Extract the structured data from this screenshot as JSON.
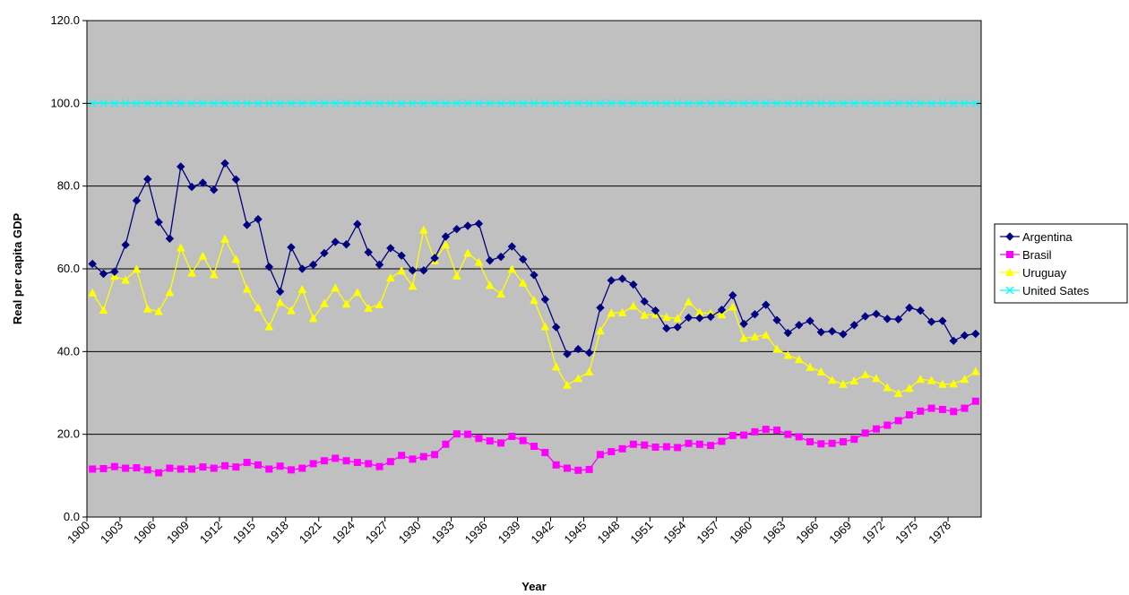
{
  "chart_data": {
    "type": "line",
    "y_label": "Real per capita GDP",
    "x_label": "Year",
    "categories": [
      "1900",
      null,
      null,
      "1903",
      null,
      null,
      "1906",
      null,
      null,
      "1909",
      null,
      null,
      "1912",
      null,
      null,
      "1915",
      null,
      null,
      "1918",
      null,
      null,
      "1921",
      null,
      null,
      "1924",
      null,
      null,
      "1927",
      null,
      null,
      "1930",
      null,
      null,
      "1933",
      null,
      null,
      "1936",
      null,
      null,
      "1939",
      null,
      null,
      "1942",
      null,
      null,
      "1945",
      null,
      null,
      "1948",
      null,
      null,
      "1951",
      null,
      null,
      "1954",
      null,
      null,
      "1957",
      null,
      null,
      "1960",
      null,
      null,
      "1963",
      null,
      null,
      "1966",
      null,
      null,
      "1969",
      null,
      null,
      "1972",
      null,
      null,
      "1975",
      null,
      null,
      "1978",
      null,
      null
    ],
    "series": [
      {
        "name": "Argentina",
        "color": "#000080",
        "marker": "diamond",
        "values": [
          61.2,
          58.8,
          59.3,
          65.8,
          76.5,
          81.7,
          71.3,
          67.3,
          84.7,
          79.8,
          80.8,
          79.1,
          85.5,
          81.6,
          70.6,
          72.0,
          60.5,
          54.5,
          65.2,
          60.0,
          61.0,
          63.8,
          66.5,
          65.9,
          70.8,
          64.0,
          61.0,
          65.0,
          63.2,
          59.6,
          59.6,
          62.6,
          67.8,
          69.6,
          70.4,
          70.9,
          62.0,
          62.9,
          65.4,
          62.3,
          58.5,
          52.6,
          45.9,
          39.4,
          40.6,
          39.7,
          50.6,
          57.2,
          57.6,
          56.2,
          52.1,
          49.9,
          45.6,
          45.9,
          48.2,
          48.1,
          48.4,
          50.1,
          53.6,
          46.7,
          49.0,
          51.3,
          47.6,
          44.5,
          46.4,
          47.4,
          44.7,
          44.9,
          44.2,
          46.4,
          48.5,
          49.1,
          47.9,
          47.8,
          50.6,
          49.9,
          47.2,
          47.4,
          42.6,
          43.9,
          44.3
        ]
      },
      {
        "name": "Brasil",
        "color": "#ff00ff",
        "marker": "square",
        "values": [
          11.6,
          11.7,
          12.2,
          11.8,
          11.9,
          11.4,
          10.7,
          11.8,
          11.6,
          11.6,
          12.1,
          11.8,
          12.4,
          12.1,
          13.2,
          12.6,
          11.6,
          12.3,
          11.4,
          11.8,
          12.9,
          13.6,
          14.2,
          13.6,
          13.2,
          12.9,
          12.2,
          13.4,
          14.9,
          14.0,
          14.6,
          15.1,
          17.6,
          20.1,
          20.0,
          19.0,
          18.4,
          17.9,
          19.5,
          18.5,
          17.1,
          15.6,
          12.6,
          11.8,
          11.3,
          11.5,
          15.1,
          15.8,
          16.5,
          17.6,
          17.4,
          16.9,
          17.0,
          16.8,
          17.8,
          17.6,
          17.3,
          18.3,
          19.7,
          19.8,
          20.6,
          21.2,
          21.0,
          20.0,
          19.4,
          18.2,
          17.7,
          17.8,
          18.2,
          18.8,
          20.3,
          21.3,
          22.2,
          23.3,
          24.7,
          25.6,
          26.3,
          26.0,
          25.5,
          26.3,
          28.0
        ]
      },
      {
        "name": "Uruguay",
        "color": "#ffff00",
        "marker": "triangle",
        "values": [
          54.2,
          50.0,
          58.2,
          57.3,
          59.9,
          50.3,
          49.7,
          54.3,
          65.1,
          59.0,
          63.1,
          58.6,
          67.2,
          62.3,
          55.1,
          50.6,
          46.0,
          51.9,
          49.9,
          55.0,
          48.0,
          51.6,
          55.4,
          51.5,
          54.3,
          50.5,
          51.3,
          57.8,
          59.5,
          55.8,
          69.4,
          62.0,
          65.8,
          58.3,
          63.8,
          61.6,
          56.0,
          53.9,
          59.9,
          56.6,
          52.4,
          46.0,
          36.3,
          31.9,
          33.5,
          35.1,
          45.0,
          49.3,
          49.4,
          51.0,
          48.8,
          49.0,
          48.3,
          48.0,
          52.0,
          49.5,
          49.2,
          48.9,
          50.8,
          43.2,
          43.6,
          44.0,
          40.6,
          39.1,
          38.1,
          36.2,
          35.1,
          33.1,
          32.1,
          32.9,
          34.4,
          33.5,
          31.3,
          29.9,
          31.1,
          33.3,
          33.0,
          32.1,
          32.2,
          33.3,
          35.2
        ]
      },
      {
        "name": "United Sates",
        "color": "#00ffff",
        "marker": "x",
        "values": [
          100,
          100,
          100,
          100,
          100,
          100,
          100,
          100,
          100,
          100,
          100,
          100,
          100,
          100,
          100,
          100,
          100,
          100,
          100,
          100,
          100,
          100,
          100,
          100,
          100,
          100,
          100,
          100,
          100,
          100,
          100,
          100,
          100,
          100,
          100,
          100,
          100,
          100,
          100,
          100,
          100,
          100,
          100,
          100,
          100,
          100,
          100,
          100,
          100,
          100,
          100,
          100,
          100,
          100,
          100,
          100,
          100,
          100,
          100,
          100,
          100,
          100,
          100,
          100,
          100,
          100,
          100,
          100,
          100,
          100,
          100,
          100,
          100,
          100,
          100,
          100,
          100,
          100,
          100,
          100,
          100
        ]
      }
    ],
    "ylim": [
      0,
      120
    ],
    "yticks": [
      {
        "value": 0,
        "label": "0.0"
      },
      {
        "value": 20,
        "label": "20.0"
      },
      {
        "value": 40,
        "label": "40.0"
      },
      {
        "value": 60,
        "label": "60.0"
      },
      {
        "value": 80,
        "label": "80.0"
      },
      {
        "value": 100,
        "label": "100.0"
      },
      {
        "value": 120,
        "label": "120.0"
      }
    ],
    "grid": true,
    "legend": "right",
    "plot_background": "#c0c0c0"
  }
}
